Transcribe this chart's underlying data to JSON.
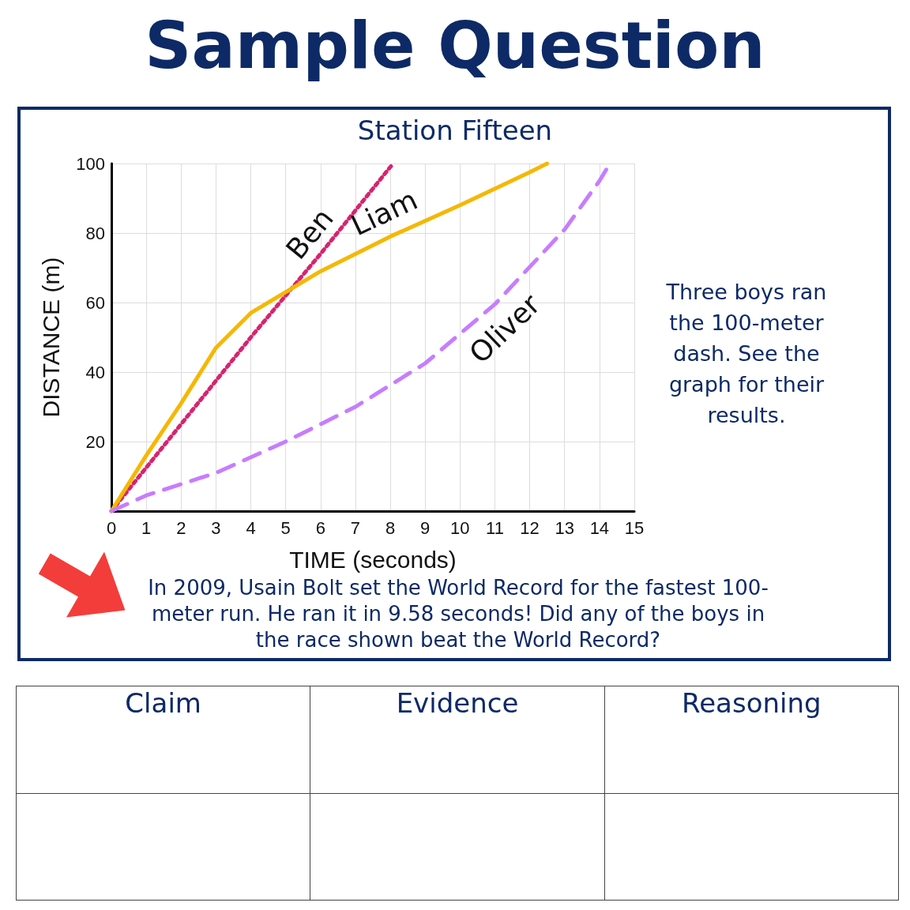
{
  "chart_data": {
    "type": "line",
    "title": "Station Fifteen",
    "xlabel": "TIME (seconds)",
    "ylabel": "DISTANCE (m)",
    "xlim": [
      0,
      15
    ],
    "xticks": [
      0,
      1,
      2,
      3,
      4,
      5,
      6,
      7,
      8,
      9,
      10,
      11,
      12,
      13,
      14,
      15
    ],
    "ylim": [
      0,
      100
    ],
    "yticks": [
      {
        "value": 0,
        "label": null
      },
      20,
      40,
      60,
      80,
      100
    ],
    "grid": true,
    "marker": "none",
    "series": [
      {
        "name": "Ben",
        "color": "#d6246e",
        "line_style": "dotted",
        "x": [
          0,
          2,
          4,
          6,
          8,
          8.1
        ],
        "values": [
          0,
          25,
          50,
          74,
          99,
          100
        ]
      },
      {
        "name": "Liam",
        "color": "#f5b800",
        "line_style": "solid",
        "x": [
          0,
          1,
          2,
          3,
          4,
          6,
          8,
          10,
          12,
          12.5
        ],
        "values": [
          0,
          16,
          31,
          47,
          57,
          69,
          79,
          88,
          97.5,
          100
        ]
      },
      {
        "name": "Oliver",
        "color": "#c77dff",
        "line_style": "dashed",
        "x": [
          0,
          1,
          3,
          5,
          7,
          9,
          11,
          13,
          14,
          14.3
        ],
        "values": [
          0,
          4.5,
          11,
          20,
          30,
          42.5,
          59.5,
          81,
          95,
          100
        ]
      }
    ],
    "annotations": [
      "Sample Question",
      "Three boys ran the 100-meter dash. See the graph for their results.",
      "In 2009, Usain Bolt set the World Record for the fastest 100-meter run. He ran it in 9.58 seconds!  Did any of the boys in the race shown beat the World Record?",
      "Claim",
      "Evidence",
      "Reasoning"
    ]
  }
}
